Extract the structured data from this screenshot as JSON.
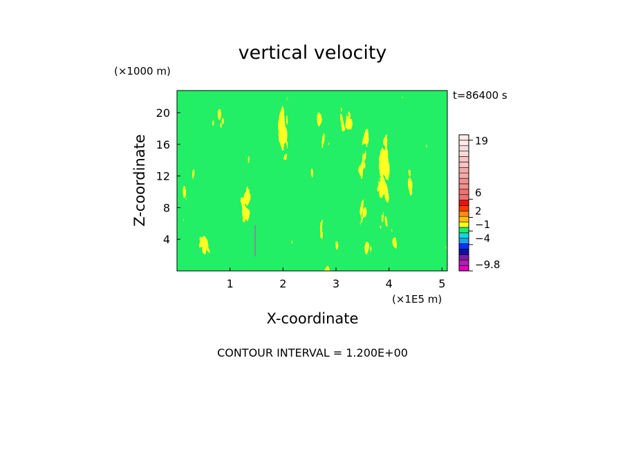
{
  "chart_data": {
    "type": "heatmap",
    "title": "vertical velocity",
    "time_label": "t=86400 s",
    "xlabel": "X-coordinate",
    "ylabel": "Z-coordinate",
    "x_unit": "(×1E5 m)",
    "y_unit": "(×1000 m)",
    "xlim": [
      0,
      5.1
    ],
    "ylim": [
      0,
      22.8
    ],
    "x_ticks": [
      1,
      2,
      3,
      4,
      5
    ],
    "y_ticks": [
      4,
      8,
      12,
      16,
      20
    ],
    "footer": "CONTOUR INTERVAL = 1.200E+00",
    "colorbar": {
      "levels": [
        -9.8,
        -8.6,
        -7.4,
        -6.2,
        -5.0,
        -3.8,
        -2.6,
        -1.4,
        -0.2,
        1.0,
        2.2,
        3.4,
        4.6,
        5.8,
        7.0,
        8.2,
        9.4,
        10.6,
        11.8,
        13.0,
        14.2,
        15.4,
        16.6,
        17.8,
        19.0,
        20.2
      ],
      "colors": [
        "#e000c0",
        "#b020b0",
        "#7a1aa8",
        "#1010a0",
        "#0a30ff",
        "#1f9eff",
        "#10d8e0",
        "#22ee66",
        "#ffff22",
        "#ffc010",
        "#ff8c00",
        "#ff3c00",
        "#ee1010",
        "#f07070",
        "#f07070",
        "#f09090",
        "#f09090",
        "#f5aaaa",
        "#f5aaaa",
        "#f8c4c4",
        "#f8c4c4",
        "#fadada",
        "#fadada",
        "#fdeaea",
        "#fdeaea"
      ],
      "tick_labels": [
        "19",
        "6",
        "2",
        "−1",
        "−4",
        "−9.8"
      ],
      "tick_values": [
        19,
        6,
        2,
        -1,
        -4,
        -9.8
      ]
    },
    "field_colors": {
      "negative": "#22ee66",
      "positive": "#ffff22"
    },
    "grid": false
  }
}
